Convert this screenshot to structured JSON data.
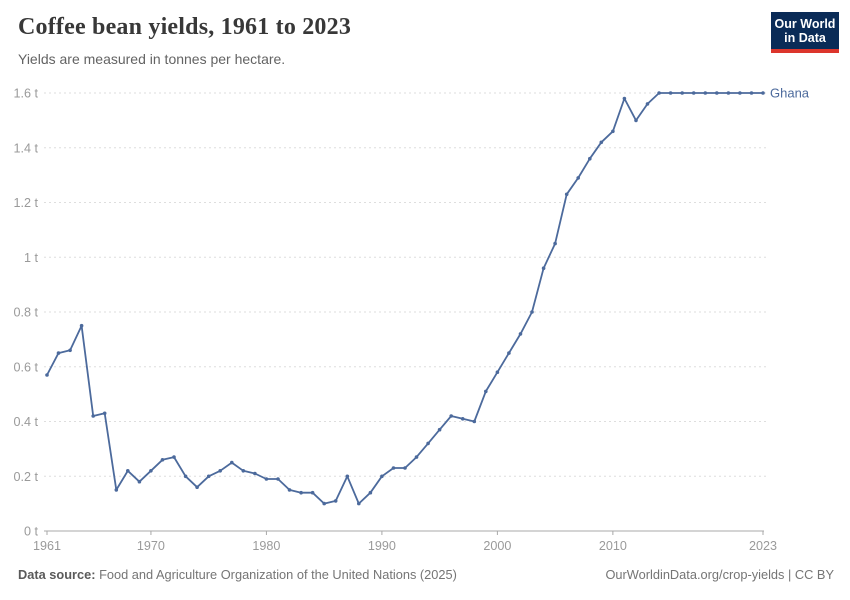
{
  "header": {
    "title": "Coffee bean yields, 1961 to 2023",
    "subtitle": "Yields are measured in tonnes per hectare.",
    "logo": {
      "line1": "Our World",
      "line2": "in Data",
      "bg_color": "#0A2B57",
      "accent_color": "#DC352C"
    }
  },
  "chart_data": {
    "type": "line",
    "title": "Coffee bean yields, 1961 to 2023",
    "xlabel": "",
    "ylabel": "tonnes per hectare",
    "xlim": [
      1961,
      2023
    ],
    "ylim": [
      0,
      1.6
    ],
    "grid": "horizontal-dashed",
    "legend_position": "end-of-line",
    "x_ticks": [
      1961,
      1970,
      1980,
      1990,
      2000,
      2010,
      2023
    ],
    "y_ticks": [
      0,
      0.2,
      0.4,
      0.6,
      0.8,
      1.0,
      1.2,
      1.4,
      1.6
    ],
    "y_tick_labels": [
      "0 t",
      "0.2 t",
      "0.4 t",
      "0.6 t",
      "0.8 t",
      "1 t",
      "1.2 t",
      "1.4 t",
      "1.6 t"
    ],
    "series": [
      {
        "name": "Ghana",
        "color": "#4C6A9C",
        "x": [
          1961,
          1962,
          1963,
          1964,
          1965,
          1966,
          1967,
          1968,
          1969,
          1970,
          1971,
          1972,
          1973,
          1974,
          1975,
          1976,
          1977,
          1978,
          1979,
          1980,
          1981,
          1982,
          1983,
          1984,
          1985,
          1986,
          1987,
          1988,
          1989,
          1990,
          1991,
          1992,
          1993,
          1994,
          1995,
          1996,
          1997,
          1998,
          1999,
          2000,
          2001,
          2002,
          2003,
          2004,
          2005,
          2006,
          2007,
          2008,
          2009,
          2010,
          2011,
          2012,
          2013,
          2014,
          2015,
          2016,
          2017,
          2018,
          2019,
          2020,
          2021,
          2022,
          2023
        ],
        "values": [
          0.57,
          0.65,
          0.66,
          0.75,
          0.42,
          0.43,
          0.15,
          0.22,
          0.18,
          0.22,
          0.26,
          0.27,
          0.2,
          0.16,
          0.2,
          0.22,
          0.25,
          0.22,
          0.21,
          0.19,
          0.19,
          0.15,
          0.14,
          0.14,
          0.1,
          0.11,
          0.2,
          0.1,
          0.14,
          0.2,
          0.23,
          0.23,
          0.27,
          0.32,
          0.37,
          0.42,
          0.41,
          0.4,
          0.51,
          0.58,
          0.65,
          0.72,
          0.8,
          0.96,
          1.05,
          1.23,
          1.29,
          1.36,
          1.42,
          1.46,
          1.58,
          1.5,
          1.56,
          1.6,
          1.6,
          1.6,
          1.6,
          1.6,
          1.6,
          1.6,
          1.6,
          1.6,
          1.6
        ]
      }
    ]
  },
  "footer": {
    "source_label": "Data source:",
    "source_text": " Food and Agriculture Organization of the United Nations (2025)",
    "rights": "OurWorldinData.org/crop-yields | CC BY"
  }
}
